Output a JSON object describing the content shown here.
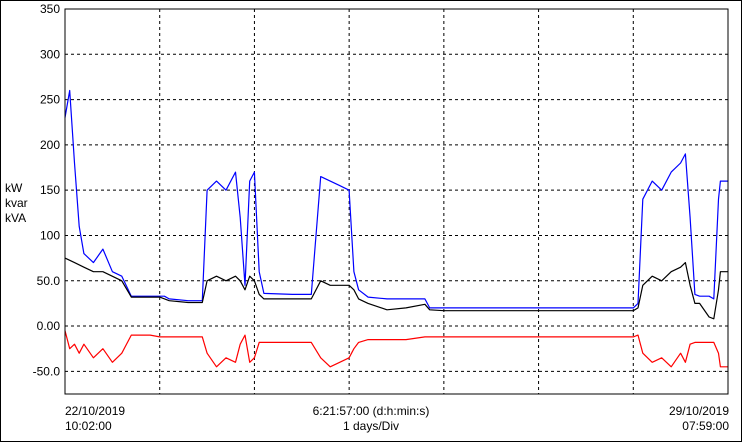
{
  "chart_data": {
    "type": "line",
    "y_units": [
      "kW",
      "kvar",
      "kVA"
    ],
    "ylim": [
      -75,
      350
    ],
    "y_ticks": [
      -50,
      0,
      50,
      100,
      150,
      200,
      250,
      300,
      350
    ],
    "y_tick_labels": [
      "-50.0",
      "0.00",
      "50.0",
      "100",
      "150",
      "200",
      "250",
      "300",
      "350"
    ],
    "grid": true,
    "x_axis": {
      "start_date": "22/10/2019",
      "start_time": "10:02:00",
      "end_date": "29/10/2019",
      "end_time": "07:59:00",
      "span": "6:21:57:00 (d:h:min:s)",
      "division": "1 days/Div",
      "divisions": 7
    },
    "series": [
      {
        "unit": "kVA",
        "color": "#0000ff",
        "points": [
          [
            0.0,
            230
          ],
          [
            0.05,
            260
          ],
          [
            0.1,
            180
          ],
          [
            0.15,
            110
          ],
          [
            0.2,
            80
          ],
          [
            0.3,
            70
          ],
          [
            0.4,
            85
          ],
          [
            0.5,
            60
          ],
          [
            0.6,
            55
          ],
          [
            0.7,
            33
          ],
          [
            1.0,
            33
          ],
          [
            1.05,
            33
          ],
          [
            1.1,
            30
          ],
          [
            1.3,
            28
          ],
          [
            1.45,
            28
          ],
          [
            1.5,
            150
          ],
          [
            1.6,
            160
          ],
          [
            1.7,
            150
          ],
          [
            1.8,
            170
          ],
          [
            1.85,
            120
          ],
          [
            1.9,
            45
          ],
          [
            1.95,
            160
          ],
          [
            2.0,
            170
          ],
          [
            2.05,
            60
          ],
          [
            2.1,
            36
          ],
          [
            2.4,
            35
          ],
          [
            2.6,
            35
          ],
          [
            2.7,
            165
          ],
          [
            2.8,
            160
          ],
          [
            2.9,
            155
          ],
          [
            3.0,
            150
          ],
          [
            3.05,
            60
          ],
          [
            3.1,
            40
          ],
          [
            3.2,
            32
          ],
          [
            3.4,
            30
          ],
          [
            3.6,
            30
          ],
          [
            3.8,
            30
          ],
          [
            3.85,
            20
          ],
          [
            4.0,
            20
          ],
          [
            4.2,
            20
          ],
          [
            4.4,
            20
          ],
          [
            4.6,
            20
          ],
          [
            4.8,
            20
          ],
          [
            5.0,
            20
          ],
          [
            5.2,
            20
          ],
          [
            5.4,
            20
          ],
          [
            5.6,
            20
          ],
          [
            5.8,
            20
          ],
          [
            6.0,
            20
          ],
          [
            6.05,
            25
          ],
          [
            6.1,
            140
          ],
          [
            6.2,
            160
          ],
          [
            6.3,
            150
          ],
          [
            6.4,
            170
          ],
          [
            6.5,
            180
          ],
          [
            6.55,
            190
          ],
          [
            6.6,
            120
          ],
          [
            6.65,
            35
          ],
          [
            6.7,
            33
          ],
          [
            6.8,
            33
          ],
          [
            6.85,
            30
          ],
          [
            6.9,
            140
          ],
          [
            6.92,
            160
          ],
          [
            6.9986,
            160
          ]
        ]
      },
      {
        "unit": "kW",
        "color": "#000000",
        "points": [
          [
            0.0,
            75
          ],
          [
            0.1,
            70
          ],
          [
            0.2,
            65
          ],
          [
            0.3,
            60
          ],
          [
            0.4,
            60
          ],
          [
            0.6,
            50
          ],
          [
            0.7,
            32
          ],
          [
            1.0,
            32
          ],
          [
            1.1,
            28
          ],
          [
            1.3,
            26
          ],
          [
            1.45,
            26
          ],
          [
            1.5,
            50
          ],
          [
            1.6,
            55
          ],
          [
            1.7,
            50
          ],
          [
            1.8,
            55
          ],
          [
            1.85,
            50
          ],
          [
            1.9,
            40
          ],
          [
            1.95,
            55
          ],
          [
            2.0,
            50
          ],
          [
            2.05,
            35
          ],
          [
            2.1,
            30
          ],
          [
            2.4,
            30
          ],
          [
            2.6,
            30
          ],
          [
            2.7,
            50
          ],
          [
            2.8,
            45
          ],
          [
            2.9,
            45
          ],
          [
            3.0,
            45
          ],
          [
            3.05,
            40
          ],
          [
            3.1,
            30
          ],
          [
            3.2,
            25
          ],
          [
            3.4,
            18
          ],
          [
            3.6,
            20
          ],
          [
            3.8,
            24
          ],
          [
            3.85,
            18
          ],
          [
            4.0,
            17
          ],
          [
            4.2,
            17
          ],
          [
            4.4,
            17
          ],
          [
            4.6,
            17
          ],
          [
            4.8,
            17
          ],
          [
            5.0,
            17
          ],
          [
            5.2,
            17
          ],
          [
            5.4,
            17
          ],
          [
            5.6,
            17
          ],
          [
            5.8,
            17
          ],
          [
            6.0,
            17
          ],
          [
            6.05,
            20
          ],
          [
            6.1,
            45
          ],
          [
            6.2,
            55
          ],
          [
            6.3,
            50
          ],
          [
            6.4,
            60
          ],
          [
            6.5,
            65
          ],
          [
            6.55,
            70
          ],
          [
            6.6,
            45
          ],
          [
            6.65,
            25
          ],
          [
            6.7,
            25
          ],
          [
            6.8,
            10
          ],
          [
            6.85,
            8
          ],
          [
            6.9,
            40
          ],
          [
            6.92,
            60
          ],
          [
            6.9986,
            60
          ]
        ]
      },
      {
        "unit": "kvar",
        "color": "#ff0000",
        "points": [
          [
            0.0,
            -5
          ],
          [
            0.05,
            -25
          ],
          [
            0.1,
            -20
          ],
          [
            0.15,
            -30
          ],
          [
            0.2,
            -20
          ],
          [
            0.3,
            -35
          ],
          [
            0.4,
            -25
          ],
          [
            0.5,
            -40
          ],
          [
            0.6,
            -30
          ],
          [
            0.7,
            -10
          ],
          [
            0.9,
            -10
          ],
          [
            1.0,
            -12
          ],
          [
            1.1,
            -12
          ],
          [
            1.3,
            -12
          ],
          [
            1.45,
            -12
          ],
          [
            1.5,
            -30
          ],
          [
            1.6,
            -45
          ],
          [
            1.7,
            -35
          ],
          [
            1.8,
            -40
          ],
          [
            1.85,
            -20
          ],
          [
            1.9,
            -10
          ],
          [
            1.95,
            -40
          ],
          [
            2.0,
            -35
          ],
          [
            2.05,
            -18
          ],
          [
            2.1,
            -18
          ],
          [
            2.4,
            -18
          ],
          [
            2.6,
            -18
          ],
          [
            2.7,
            -35
          ],
          [
            2.8,
            -45
          ],
          [
            2.9,
            -40
          ],
          [
            3.0,
            -35
          ],
          [
            3.05,
            -25
          ],
          [
            3.1,
            -18
          ],
          [
            3.2,
            -15
          ],
          [
            3.4,
            -15
          ],
          [
            3.6,
            -15
          ],
          [
            3.8,
            -12
          ],
          [
            3.85,
            -12
          ],
          [
            4.0,
            -12
          ],
          [
            4.2,
            -12
          ],
          [
            4.4,
            -12
          ],
          [
            4.6,
            -12
          ],
          [
            4.8,
            -12
          ],
          [
            5.0,
            -12
          ],
          [
            5.2,
            -12
          ],
          [
            5.4,
            -12
          ],
          [
            5.6,
            -12
          ],
          [
            5.8,
            -12
          ],
          [
            6.0,
            -12
          ],
          [
            6.05,
            -10
          ],
          [
            6.1,
            -30
          ],
          [
            6.2,
            -40
          ],
          [
            6.3,
            -35
          ],
          [
            6.4,
            -45
          ],
          [
            6.5,
            -30
          ],
          [
            6.55,
            -40
          ],
          [
            6.6,
            -20
          ],
          [
            6.65,
            -18
          ],
          [
            6.7,
            -18
          ],
          [
            6.8,
            -18
          ],
          [
            6.85,
            -18
          ],
          [
            6.9,
            -30
          ],
          [
            6.92,
            -45
          ],
          [
            6.9986,
            -45
          ]
        ]
      }
    ]
  }
}
